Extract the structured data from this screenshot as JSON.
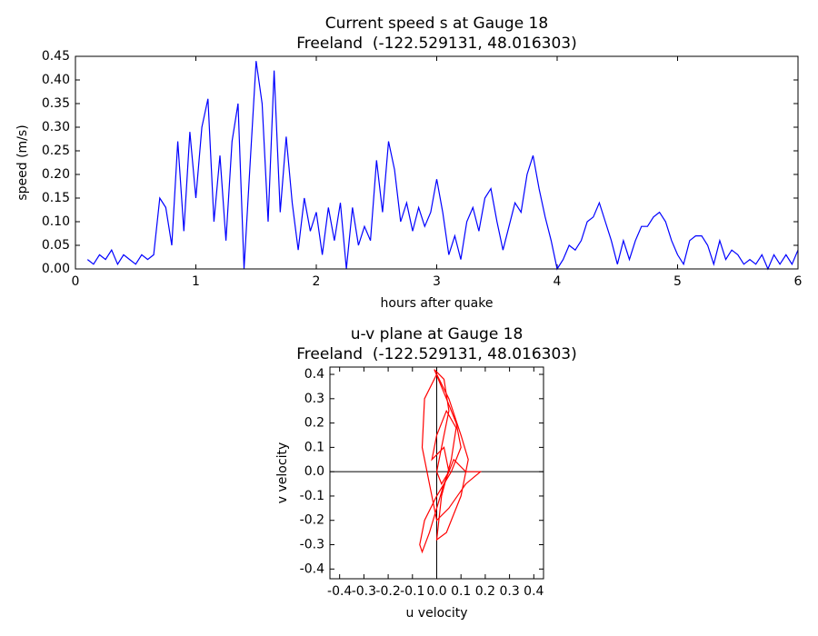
{
  "chart_data": [
    {
      "type": "line",
      "title": "Current speed s at Gauge 18",
      "subtitle": "Freeland  (-122.529131, 48.016303)",
      "xlabel": "hours after quake",
      "ylabel": "speed (m/s)",
      "xlim": [
        0,
        6
      ],
      "ylim": [
        0,
        0.45
      ],
      "xticks": [
        0,
        1,
        2,
        3,
        4,
        5,
        6
      ],
      "yticks": [
        {
          "value": 0,
          "label": "0.00"
        },
        0.05,
        {
          "value": 0.1,
          "label": "0.10"
        },
        0.15,
        {
          "value": 0.2,
          "label": "0.20"
        },
        0.25,
        {
          "value": 0.3,
          "label": "0.30"
        },
        0.35,
        {
          "value": 0.4,
          "label": "0.40"
        },
        0.45
      ],
      "color": "#0000ff",
      "x": [
        0.1,
        0.15,
        0.2,
        0.25,
        0.3,
        0.35,
        0.4,
        0.45,
        0.5,
        0.55,
        0.6,
        0.65,
        0.7,
        0.75,
        0.8,
        0.85,
        0.9,
        0.95,
        1,
        1.05,
        1.1,
        1.15,
        1.2,
        1.25,
        1.3,
        1.35,
        1.4,
        1.45,
        1.5,
        1.55,
        1.6,
        1.65,
        1.7,
        1.75,
        1.8,
        1.85,
        1.9,
        1.95,
        2,
        2.05,
        2.1,
        2.15,
        2.2,
        2.25,
        2.3,
        2.35,
        2.4,
        2.45,
        2.5,
        2.55,
        2.6,
        2.65,
        2.7,
        2.75,
        2.8,
        2.85,
        2.9,
        2.95,
        3,
        3.05,
        3.1,
        3.15,
        3.2,
        3.25,
        3.3,
        3.35,
        3.4,
        3.45,
        3.5,
        3.55,
        3.6,
        3.65,
        3.7,
        3.75,
        3.8,
        3.85,
        3.9,
        3.95,
        4,
        4.05,
        4.1,
        4.15,
        4.2,
        4.25,
        4.3,
        4.35,
        4.4,
        4.45,
        4.5,
        4.55,
        4.6,
        4.65,
        4.7,
        4.75,
        4.8,
        4.85,
        4.9,
        4.95,
        5,
        5.05,
        5.1,
        5.15,
        5.2,
        5.25,
        5.3,
        5.35,
        5.4,
        5.45,
        5.5,
        5.55,
        5.6,
        5.65,
        5.7,
        5.75,
        5.8,
        5.85,
        5.9,
        5.95,
        6
      ],
      "values": [
        0.02,
        0.01,
        0.03,
        0.02,
        0.04,
        0.01,
        0.03,
        0.02,
        0.01,
        0.03,
        0.02,
        0.03,
        0.15,
        0.13,
        0.05,
        0.27,
        0.08,
        0.29,
        0.15,
        0.3,
        0.36,
        0.1,
        0.24,
        0.06,
        0.27,
        0.35,
        0,
        0.22,
        0.44,
        0.35,
        0.1,
        0.42,
        0.12,
        0.28,
        0.14,
        0.04,
        0.15,
        0.08,
        0.12,
        0.03,
        0.13,
        0.06,
        0.14,
        0,
        0.13,
        0.05,
        0.09,
        0.06,
        0.23,
        0.12,
        0.27,
        0.21,
        0.1,
        0.14,
        0.08,
        0.13,
        0.09,
        0.12,
        0.19,
        0.12,
        0.03,
        0.07,
        0.02,
        0.1,
        0.13,
        0.08,
        0.15,
        0.17,
        0.1,
        0.04,
        0.09,
        0.14,
        0.12,
        0.2,
        0.24,
        0.17,
        0.11,
        0.06,
        0,
        0.02,
        0.05,
        0.04,
        0.06,
        0.1,
        0.11,
        0.14,
        0.1,
        0.06,
        0.01,
        0.06,
        0.02,
        0.06,
        0.09,
        0.09,
        0.11,
        0.12,
        0.1,
        0.06,
        0.03,
        0.01,
        0.06,
        0.07,
        0.07,
        0.05,
        0.01,
        0.06,
        0.02,
        0.04,
        0.03,
        0.01,
        0.02,
        0.01,
        0.03,
        0,
        0.03,
        0.01,
        0.03,
        0.01,
        0.04
      ]
    },
    {
      "type": "line",
      "title": "u-v plane at Gauge 18",
      "subtitle": "Freeland  (-122.529131, 48.016303)",
      "xlabel": "u velocity",
      "ylabel": "v velocity",
      "xlim": [
        -0.44,
        0.44
      ],
      "ylim": [
        -0.44,
        0.43
      ],
      "xticks": [
        -0.4,
        -0.3,
        -0.2,
        -0.1,
        {
          "value": 0,
          "label": "0.0"
        },
        0.1,
        0.2,
        0.3,
        0.4
      ],
      "yticks": [
        -0.4,
        -0.3,
        -0.2,
        -0.1,
        {
          "value": 0,
          "label": "0.0"
        },
        0.1,
        0.2,
        0.3,
        0.4
      ],
      "hline": 0,
      "vline": 0,
      "color": "#ff0000",
      "x": [
        0,
        0.02,
        0.05,
        0.03,
        -0.01,
        0.04,
        0.08,
        0.1,
        0.06,
        0,
        -0.05,
        -0.07,
        -0.06,
        -0.03,
        0,
        0.03,
        0.07,
        0.12,
        0.18,
        0.12,
        0.05,
        0,
        -0.03,
        -0.06,
        -0.05,
        0,
        0.05,
        0.1,
        0.13,
        0.1,
        0.04,
        0,
        0.02,
        0.06,
        0.08,
        0.04,
        0,
        -0.02,
        0.03,
        0.05,
        0.02,
        0
      ],
      "values": [
        0,
        0.1,
        0.25,
        0.38,
        0.42,
        0.3,
        0.2,
        0.1,
        0,
        -0.1,
        -0.2,
        -0.3,
        -0.33,
        -0.25,
        -0.15,
        -0.05,
        0.05,
        0,
        0,
        -0.05,
        -0.15,
        -0.2,
        -0.05,
        0.1,
        0.3,
        0.4,
        0.3,
        0.15,
        0.05,
        -0.1,
        -0.25,
        -0.28,
        -0.1,
        0.05,
        0.18,
        0.25,
        0.15,
        0.05,
        0.1,
        0,
        -0.05,
        0
      ]
    }
  ]
}
